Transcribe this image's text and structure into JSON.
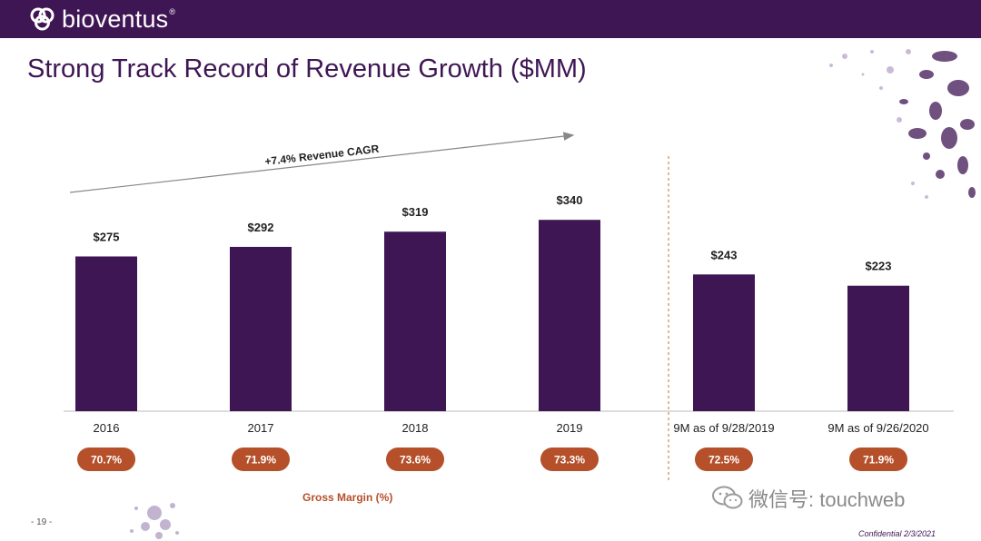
{
  "header": {
    "brand": "bioventus",
    "brand_mark": "®"
  },
  "slide": {
    "title": "Strong Track Record of Revenue Growth ($MM)",
    "cagr_label": "+7.4% Revenue CAGR",
    "gross_margin_caption": "Gross Margin (%)",
    "page_number": "- 19 -",
    "confidential": "Confidential 2/3/2021"
  },
  "watermark": {
    "text": "微信号: touchweb"
  },
  "colors": {
    "brand_purple": "#3f1654",
    "margin_orange": "#b5502a"
  },
  "chart_data": {
    "type": "bar",
    "title": "Strong Track Record of Revenue Growth ($MM)",
    "categories": [
      "2016",
      "2017",
      "2018",
      "2019",
      "9M as of 9/28/2019",
      "9M as of 9/26/2020"
    ],
    "values": [
      275,
      292,
      319,
      340,
      243,
      223
    ],
    "value_labels": [
      "$275",
      "$292",
      "$319",
      "$340",
      "$243",
      "$223"
    ],
    "gross_margin_labels": [
      "70.7%",
      "71.9%",
      "73.6%",
      "73.3%",
      "72.5%",
      "71.9%"
    ],
    "gross_margin": [
      70.7,
      71.9,
      73.6,
      73.3,
      72.5,
      71.9
    ],
    "ylim": [
      0,
      380
    ],
    "xlabel": "",
    "ylabel": "",
    "grid": false,
    "annotations": [
      "+7.4% Revenue CAGR"
    ]
  }
}
